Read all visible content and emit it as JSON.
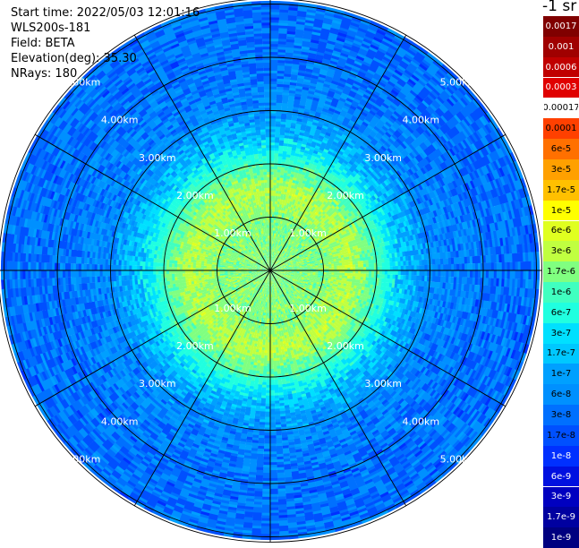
{
  "header": {
    "start_time": "Start time: 2022/05/03 12:01:16",
    "instrument": "WLS200s-181",
    "field": "Field: BETA",
    "elevation": "Elevation(deg): 35.30",
    "nrays": "NRays: 180"
  },
  "colorbar": {
    "unit_label": "-1 sr",
    "ticks": [
      "0.0017",
      "0.001",
      "0.0006",
      "0.0003",
      "0.00017",
      "0.0001",
      "6e-5",
      "3e-5",
      "1.7e-5",
      "1e-5",
      "6e-6",
      "3e-6",
      "1.7e-6",
      "1e-6",
      "6e-7",
      "3e-7",
      "1.7e-7",
      "1e-7",
      "6e-8",
      "3e-8",
      "1.7e-8",
      "1e-8",
      "6e-9",
      "3e-9",
      "1.7e-9",
      "1e-9"
    ],
    "colors": [
      "#800000",
      "#a00000",
      "#c00000",
      "#e00000",
      "#ffffff",
      "#ff4000",
      "#ff7000",
      "#ffa000",
      "#ffc000",
      "#ffff00",
      "#e0ff20",
      "#c0ff40",
      "#80ff80",
      "#40ffc0",
      "#20ffe0",
      "#00e0ff",
      "#00c8ff",
      "#00a0ff",
      "#0090ff",
      "#0070ff",
      "#0050ff",
      "#0030ff",
      "#0010e0",
      "#0000c0",
      "#0000a0",
      "#000080"
    ],
    "text_colors": [
      "#ffffff",
      "#ffffff",
      "#ffffff",
      "#ffffff",
      "#000000",
      "#000000",
      "#000000",
      "#000000",
      "#000000",
      "#000000",
      "#000000",
      "#000000",
      "#000000",
      "#000000",
      "#000000",
      "#000000",
      "#000000",
      "#000000",
      "#000000",
      "#000000",
      "#000000",
      "#ffffff",
      "#ffffff",
      "#ffffff",
      "#ffffff",
      "#ffffff"
    ]
  },
  "chart_data": {
    "type": "heatmap",
    "projection": "polar PPI",
    "field": "BETA",
    "rings_km": [
      1,
      2,
      3,
      4,
      5
    ],
    "ring_labels": [
      "1.00km",
      "2.00km",
      "3.00km",
      "4.00km",
      "5.00km"
    ],
    "max_range_km": 5.1,
    "azimuth_lines_deg": [
      0,
      30,
      60,
      90,
      120,
      150,
      180,
      210,
      240,
      270,
      300,
      330
    ],
    "nrays": 180,
    "radial_profile": [
      {
        "range_km": 0.0,
        "value": "1.7e-6"
      },
      {
        "range_km": 0.5,
        "value": "1.7e-6"
      },
      {
        "range_km": 1.0,
        "value": "1.7e-6"
      },
      {
        "range_km": 1.5,
        "value": "3e-6"
      },
      {
        "range_km": 2.0,
        "value": "1e-6"
      },
      {
        "range_km": 2.5,
        "value": "1.7e-7"
      },
      {
        "range_km": 3.0,
        "value": "6e-8"
      },
      {
        "range_km": 4.0,
        "value": "3e-8"
      },
      {
        "range_km": 5.0,
        "value": "3e-8"
      }
    ]
  }
}
